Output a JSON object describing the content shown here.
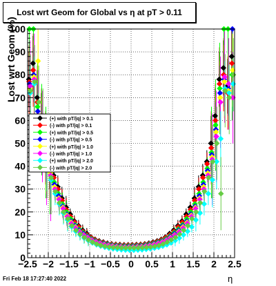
{
  "header": {
    "title": "Lost wrt Geom for Global vs    η at pT > 0.11"
  },
  "footer": {
    "timestamp": "Fri Feb 18 17:27:40 2022"
  },
  "chart_data": {
    "type": "scatter",
    "title": "Lost wrt Geom for Global vs    η at pT > 0.11",
    "xlabel": "η",
    "ylabel": "Lost wrt Geom (%)",
    "xlim": [
      -2.5,
      2.5
    ],
    "ylim": [
      0,
      100
    ],
    "x_ticks": [
      -2.5,
      -2,
      -1.5,
      -1,
      -0.5,
      0,
      0.5,
      1,
      1.5,
      2,
      2.5
    ],
    "x_tick_labels": [
      "−2.5",
      "−2",
      "−1.5",
      "−1",
      "−0.5",
      "0",
      "0.5",
      "1",
      "1.5",
      "2",
      "2.5"
    ],
    "y_ticks": [
      0,
      10,
      20,
      30,
      40,
      50,
      60,
      70,
      80,
      90,
      100
    ],
    "grid": true,
    "legend_position": "left-middle",
    "series": [
      {
        "name": "(+) with pT/|q| > 0.1",
        "color": "#000000",
        "x": [
          -2.45,
          -2.35,
          -2.25,
          -2.15,
          -2.05,
          -1.95,
          -1.85,
          -1.75,
          -1.65,
          -1.55,
          -1.45,
          -1.35,
          -1.25,
          -1.15,
          -1.05,
          -0.95,
          -0.85,
          -0.75,
          -0.65,
          -0.55,
          -0.45,
          -0.35,
          -0.25,
          -0.15,
          -0.05,
          0.05,
          0.15,
          0.25,
          0.35,
          0.45,
          0.55,
          0.65,
          0.75,
          0.85,
          0.95,
          1.05,
          1.15,
          1.25,
          1.35,
          1.45,
          1.55,
          1.65,
          1.75,
          1.85,
          1.95,
          2.05,
          2.15,
          2.25,
          2.35,
          2.45
        ],
        "y": [
          78,
          85,
          70,
          60,
          50,
          42,
          36,
          31,
          26,
          22,
          19,
          16,
          14,
          12,
          10.5,
          9,
          8,
          7.3,
          6.8,
          6.3,
          6,
          5.8,
          5.7,
          5.6,
          5.6,
          5.6,
          5.7,
          5.8,
          6,
          6.3,
          6.8,
          7.3,
          8,
          9,
          10.5,
          12,
          14,
          16,
          19,
          22,
          26,
          31,
          36,
          42,
          50,
          62,
          78,
          83,
          75,
          88
        ]
      },
      {
        "name": "(-) with pT/|q| > 0.1",
        "color": "#ff0000",
        "x": [
          -2.45,
          -2.35,
          -2.25,
          -2.15,
          -2.05,
          -1.95,
          -1.85,
          -1.75,
          -1.65,
          -1.55,
          -1.45,
          -1.35,
          -1.25,
          -1.15,
          -1.05,
          -0.95,
          -0.85,
          -0.75,
          -0.65,
          -0.55,
          -0.45,
          -0.35,
          -0.25,
          -0.15,
          -0.05,
          0.05,
          0.15,
          0.25,
          0.35,
          0.45,
          0.55,
          0.65,
          0.75,
          0.85,
          0.95,
          1.05,
          1.15,
          1.25,
          1.35,
          1.45,
          1.55,
          1.65,
          1.75,
          1.85,
          1.95,
          2.05,
          2.15,
          2.25,
          2.35,
          2.45
        ],
        "y": [
          77,
          82,
          68,
          58,
          48,
          41,
          35,
          30,
          25,
          21,
          18,
          15.5,
          13.5,
          11.5,
          10,
          8.8,
          7.8,
          7.1,
          6.6,
          6.1,
          5.9,
          5.7,
          5.6,
          5.5,
          5.5,
          5.5,
          5.6,
          5.7,
          5.9,
          6.1,
          6.6,
          7.1,
          7.8,
          8.8,
          10,
          11.5,
          13.5,
          15.5,
          18,
          21,
          25,
          30,
          35,
          41,
          48,
          60,
          76,
          80,
          72,
          85
        ]
      },
      {
        "name": "(+) with pT/|q| > 0.5",
        "color": "#00ff00",
        "x": [
          -2.45,
          -2.35,
          -2.25,
          -2.15,
          -2.05,
          -1.95,
          -1.85,
          -1.75,
          -1.65,
          -1.55,
          -1.45,
          -1.35,
          -1.25,
          -1.15,
          -1.05,
          -0.95,
          -0.85,
          -0.75,
          -0.65,
          -0.55,
          -0.45,
          -0.35,
          -0.25,
          -0.15,
          -0.05,
          0.05,
          0.15,
          0.25,
          0.35,
          0.45,
          0.55,
          0.65,
          0.75,
          0.85,
          0.95,
          1.05,
          1.15,
          1.25,
          1.35,
          1.45,
          1.55,
          1.65,
          1.75,
          1.85,
          1.95,
          2.05,
          2.15,
          2.25,
          2.35,
          2.45
        ],
        "y": [
          100,
          100,
          66,
          56,
          46,
          39,
          33,
          28,
          23.5,
          20,
          17,
          14.5,
          12.5,
          11,
          9.5,
          8.3,
          7.4,
          6.8,
          6.3,
          5.9,
          5.6,
          5.4,
          5.3,
          5.2,
          5.2,
          5.2,
          5.3,
          5.4,
          5.6,
          5.9,
          6.3,
          6.8,
          7.4,
          8.3,
          9.5,
          11,
          12.5,
          14.5,
          17,
          20,
          23.5,
          28,
          33,
          39,
          46,
          58,
          74,
          100,
          100,
          80
        ]
      },
      {
        "name": "(-) with pT/|q| > 0.5",
        "color": "#0000ff",
        "x": [
          -2.45,
          -2.35,
          -2.25,
          -2.15,
          -2.05,
          -1.95,
          -1.85,
          -1.75,
          -1.65,
          -1.55,
          -1.45,
          -1.35,
          -1.25,
          -1.15,
          -1.05,
          -0.95,
          -0.85,
          -0.75,
          -0.65,
          -0.55,
          -0.45,
          -0.35,
          -0.25,
          -0.15,
          -0.05,
          0.05,
          0.15,
          0.25,
          0.35,
          0.45,
          0.55,
          0.65,
          0.75,
          0.85,
          0.95,
          1.05,
          1.15,
          1.25,
          1.35,
          1.45,
          1.55,
          1.65,
          1.75,
          1.85,
          1.95,
          2.05,
          2.15,
          2.25,
          2.35,
          2.45
        ],
        "y": [
          76,
          80,
          64,
          55,
          45,
          38,
          32,
          27,
          22.5,
          19,
          16,
          14,
          12,
          10.5,
          9.2,
          8,
          7.2,
          6.6,
          6.1,
          5.7,
          5.4,
          5.2,
          5.1,
          5,
          5,
          5,
          5.1,
          5.2,
          5.4,
          5.7,
          6.1,
          6.6,
          7.2,
          8,
          9.2,
          10.5,
          12,
          14,
          16,
          19,
          22.5,
          27,
          32,
          38,
          45,
          56,
          72,
          78,
          74,
          100
        ]
      },
      {
        "name": "(+) with pT/|q| > 1.0",
        "color": "#ffff00",
        "x": [
          -2.45,
          -2.35,
          -2.25,
          -2.15,
          -2.05,
          -1.95,
          -1.85,
          -1.75,
          -1.65,
          -1.55,
          -1.45,
          -1.35,
          -1.25,
          -1.15,
          -1.05,
          -0.95,
          -0.85,
          -0.75,
          -0.65,
          -0.55,
          -0.45,
          -0.35,
          -0.25,
          -0.15,
          -0.05,
          0.05,
          0.15,
          0.25,
          0.35,
          0.45,
          0.55,
          0.65,
          0.75,
          0.85,
          0.95,
          1.05,
          1.15,
          1.25,
          1.35,
          1.45,
          1.55,
          1.65,
          1.75,
          1.85,
          1.95,
          2.05,
          2.15,
          2.25,
          2.35,
          2.45
        ],
        "y": [
          74,
          79,
          86,
          54,
          44,
          37,
          31,
          26,
          22,
          18.5,
          15.5,
          13.5,
          11.5,
          10,
          8.8,
          7.7,
          6.9,
          6.3,
          5.8,
          5.4,
          5.1,
          4.9,
          4.8,
          4.7,
          4.7,
          4.7,
          4.8,
          4.9,
          5.1,
          5.4,
          5.8,
          6.3,
          6.9,
          7.7,
          8.8,
          10,
          11.5,
          13.5,
          15.5,
          18.5,
          22,
          26,
          31,
          37,
          44,
          55,
          70,
          77,
          73,
          82
        ]
      },
      {
        "name": "(-) with pT/|q| > 1.0",
        "color": "#ff00ff",
        "x": [
          -2.45,
          -2.35,
          -2.25,
          -2.15,
          -2.05,
          -1.95,
          -1.85,
          -1.75,
          -1.65,
          -1.55,
          -1.45,
          -1.35,
          -1.25,
          -1.15,
          -1.05,
          -0.95,
          -0.85,
          -0.75,
          -0.65,
          -0.55,
          -0.45,
          -0.35,
          -0.25,
          -0.15,
          -0.05,
          0.05,
          0.15,
          0.25,
          0.35,
          0.45,
          0.55,
          0.65,
          0.75,
          0.85,
          0.95,
          1.05,
          1.15,
          1.25,
          1.35,
          1.45,
          1.55,
          1.65,
          1.75,
          1.85,
          1.95,
          2.05,
          2.15,
          2.25,
          2.35,
          2.45
        ],
        "y": [
          75,
          78,
          62,
          53,
          43,
          36,
          30,
          25.5,
          21.5,
          18,
          15,
          13,
          11.2,
          9.8,
          8.6,
          7.5,
          6.7,
          6.1,
          5.6,
          5.2,
          4.9,
          4.7,
          4.6,
          4.5,
          4.5,
          4.5,
          4.6,
          4.7,
          4.9,
          5.2,
          5.6,
          6.1,
          6.7,
          7.5,
          8.6,
          9.8,
          11.2,
          13,
          15,
          18,
          21.5,
          25.5,
          30,
          36,
          43,
          53,
          68,
          79,
          76,
          70
        ]
      },
      {
        "name": "(+) with pT/|q| > 2.0",
        "color": "#00ffff",
        "x": [
          -2.45,
          -2.35,
          -2.25,
          -2.15,
          -2.05,
          -1.95,
          -1.85,
          -1.75,
          -1.65,
          -1.55,
          -1.45,
          -1.35,
          -1.25,
          -1.15,
          -1.05,
          -0.95,
          -0.85,
          -0.75,
          -0.65,
          -0.55,
          -0.45,
          -0.35,
          -0.25,
          -0.15,
          -0.05,
          0.05,
          0.15,
          0.25,
          0.35,
          0.45,
          0.55,
          0.65,
          0.75,
          0.85,
          0.95,
          1.05,
          1.15,
          1.25,
          1.35,
          1.45,
          1.55,
          1.65,
          1.75,
          1.85,
          1.95,
          2.05,
          2.15,
          2.25,
          2.35,
          2.45
        ],
        "y": [
          72,
          76,
          60,
          51,
          41,
          34,
          28,
          23.5,
          19.5,
          16.5,
          13.5,
          11.5,
          10,
          8.6,
          7.5,
          6.5,
          5.7,
          5.1,
          4.6,
          4.2,
          3.9,
          3.7,
          3.5,
          3.4,
          3.3,
          3.3,
          3.4,
          3.5,
          3.7,
          3.9,
          4.2,
          4.6,
          5.1,
          5.7,
          6.5,
          7.5,
          8.6,
          10,
          11.5,
          13.5,
          16.5,
          19.5,
          23.5,
          28,
          34,
          42,
          52,
          74,
          72,
          76
        ]
      },
      {
        "name": "(-) with pT/|q| > 2.0",
        "color": "#66cc44",
        "x": [
          -2.45,
          -2.35,
          -2.25,
          -2.15,
          -2.05,
          -1.95,
          -1.85,
          -1.75,
          -1.65,
          -1.55,
          -1.45,
          -1.35,
          -1.25,
          -1.15,
          -1.05,
          -0.95,
          -0.85,
          -0.75,
          -0.65,
          -0.55,
          -0.45,
          -0.35,
          -0.25,
          -0.15,
          -0.05,
          0.05,
          0.15,
          0.25,
          0.35,
          0.45,
          0.55,
          0.65,
          0.75,
          0.85,
          0.95,
          1.05,
          1.15,
          1.25,
          1.35,
          1.45,
          1.55,
          1.65,
          1.75,
          1.85,
          1.95,
          2.05,
          2.15,
          2.25,
          2.35,
          2.45
        ],
        "y": [
          73,
          77,
          68,
          58,
          42,
          35,
          29,
          24,
          20,
          17,
          14,
          12,
          10.3,
          8.9,
          7.8,
          6.8,
          6,
          5.4,
          5,
          4.7,
          4.5,
          4.4,
          4.3,
          4.3,
          4.3,
          4.3,
          4.3,
          4.4,
          4.5,
          4.7,
          5,
          5.4,
          6,
          6.8,
          7.8,
          8.9,
          10.3,
          12,
          14,
          17,
          20,
          24,
          29,
          35,
          42,
          50,
          28,
          73,
          70,
          80
        ]
      }
    ]
  }
}
